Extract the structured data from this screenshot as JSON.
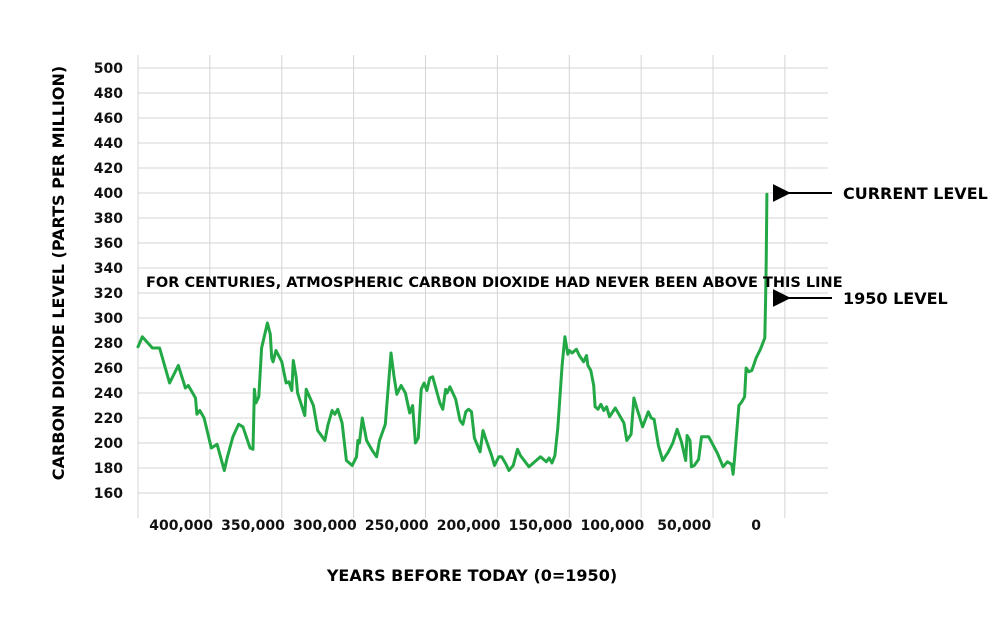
{
  "chart_data": {
    "type": "line",
    "title": "",
    "xlabel": "YEARS BEFORE TODAY (0=1950)",
    "ylabel": "CARBON DIOXIDE LEVEL (PARTS PER MILLION)",
    "ylim": [
      150,
      510
    ],
    "xlim": [
      430000,
      -50000
    ],
    "grid": true,
    "y_ticks": [
      160,
      180,
      200,
      220,
      240,
      260,
      280,
      300,
      320,
      340,
      360,
      380,
      400,
      420,
      440,
      460,
      480,
      500
    ],
    "x_ticks": [
      {
        "value": 400000,
        "label": "400,000"
      },
      {
        "value": 350000,
        "label": "350,000"
      },
      {
        "value": 300000,
        "label": "300,000"
      },
      {
        "value": 250000,
        "label": "250,000"
      },
      {
        "value": 200000,
        "label": "200,000"
      },
      {
        "value": 150000,
        "label": "150,000"
      },
      {
        "value": 100000,
        "label": "100,000"
      },
      {
        "value": 50000,
        "label": "50,000"
      },
      {
        "value": 0,
        "label": "0"
      }
    ],
    "x_grid": [
      430000,
      380000,
      330000,
      280000,
      230000,
      180000,
      130000,
      80000,
      30000,
      -20000
    ],
    "series": [
      {
        "color": "#22a845",
        "points": [
          [
            430000,
            277
          ],
          [
            427000,
            285
          ],
          [
            420000,
            276
          ],
          [
            415000,
            276
          ],
          [
            408000,
            248
          ],
          [
            402000,
            262
          ],
          [
            397000,
            244
          ],
          [
            395000,
            246
          ],
          [
            390000,
            236
          ],
          [
            389000,
            223
          ],
          [
            387000,
            226
          ],
          [
            384000,
            220
          ],
          [
            379000,
            196
          ],
          [
            375000,
            199
          ],
          [
            370000,
            178
          ],
          [
            368000,
            188
          ],
          [
            364000,
            205
          ],
          [
            360000,
            215
          ],
          [
            357000,
            213
          ],
          [
            352000,
            196
          ],
          [
            350000,
            195
          ],
          [
            349000,
            243
          ],
          [
            348000,
            232
          ],
          [
            346000,
            237
          ],
          [
            344000,
            276
          ],
          [
            340000,
            296
          ],
          [
            338000,
            287
          ],
          [
            337000,
            268
          ],
          [
            336000,
            265
          ],
          [
            334000,
            274
          ],
          [
            330000,
            265
          ],
          [
            327000,
            248
          ],
          [
            325000,
            249
          ],
          [
            323000,
            242
          ],
          [
            322000,
            266
          ],
          [
            320000,
            253
          ],
          [
            319000,
            240
          ],
          [
            314000,
            222
          ],
          [
            313000,
            243
          ],
          [
            308000,
            230
          ],
          [
            305000,
            210
          ],
          [
            300000,
            202
          ],
          [
            298000,
            214
          ],
          [
            295000,
            226
          ],
          [
            293000,
            223
          ],
          [
            291000,
            227
          ],
          [
            288000,
            216
          ],
          [
            285000,
            186
          ],
          [
            281000,
            182
          ],
          [
            278000,
            189
          ],
          [
            277000,
            202
          ],
          [
            276000,
            200
          ],
          [
            274000,
            220
          ],
          [
            271000,
            202
          ],
          [
            267000,
            194
          ],
          [
            264000,
            189
          ],
          [
            262000,
            202
          ],
          [
            258000,
            215
          ],
          [
            254000,
            272
          ],
          [
            252000,
            254
          ],
          [
            250000,
            239
          ],
          [
            247000,
            246
          ],
          [
            244000,
            240
          ],
          [
            241000,
            224
          ],
          [
            239000,
            230
          ],
          [
            237000,
            200
          ],
          [
            235000,
            204
          ],
          [
            233000,
            243
          ],
          [
            231000,
            248
          ],
          [
            229000,
            242
          ],
          [
            227000,
            252
          ],
          [
            225000,
            253
          ],
          [
            220000,
            232
          ],
          [
            218000,
            227
          ],
          [
            216000,
            243
          ],
          [
            215000,
            240
          ],
          [
            213000,
            245
          ],
          [
            209000,
            235
          ],
          [
            206000,
            218
          ],
          [
            204000,
            215
          ],
          [
            202000,
            225
          ],
          [
            200000,
            227
          ],
          [
            198000,
            225
          ],
          [
            196000,
            204
          ],
          [
            192000,
            193
          ],
          [
            190000,
            210
          ],
          [
            188000,
            203
          ],
          [
            184000,
            190
          ],
          [
            182000,
            182
          ],
          [
            179000,
            189
          ],
          [
            177000,
            189
          ],
          [
            174000,
            183
          ],
          [
            172000,
            178
          ],
          [
            169000,
            182
          ],
          [
            166000,
            195
          ],
          [
            164000,
            190
          ],
          [
            158000,
            181
          ],
          [
            155000,
            184
          ],
          [
            150000,
            189
          ],
          [
            146000,
            185
          ],
          [
            144000,
            188
          ],
          [
            142000,
            184
          ],
          [
            140000,
            190
          ],
          [
            138000,
            212
          ],
          [
            135000,
            262
          ],
          [
            133000,
            285
          ],
          [
            131000,
            271
          ],
          [
            130000,
            274
          ],
          [
            128000,
            272
          ],
          [
            125000,
            275
          ],
          [
            123000,
            270
          ],
          [
            120000,
            265
          ],
          [
            118000,
            270
          ],
          [
            117000,
            262
          ],
          [
            115000,
            258
          ],
          [
            113000,
            246
          ],
          [
            112000,
            229
          ],
          [
            110000,
            227
          ],
          [
            108000,
            231
          ],
          [
            106000,
            226
          ],
          [
            104000,
            229
          ],
          [
            102000,
            221
          ],
          [
            98000,
            228
          ],
          [
            95000,
            222
          ],
          [
            92000,
            216
          ],
          [
            90000,
            202
          ],
          [
            87000,
            207
          ],
          [
            85000,
            236
          ],
          [
            83000,
            228
          ],
          [
            79000,
            213
          ],
          [
            75000,
            225
          ],
          [
            73000,
            220
          ],
          [
            71000,
            219
          ],
          [
            68000,
            198
          ],
          [
            65000,
            186
          ],
          [
            61000,
            193
          ],
          [
            58000,
            200
          ],
          [
            55000,
            211
          ],
          [
            52000,
            201
          ],
          [
            49000,
            186
          ],
          [
            48000,
            206
          ],
          [
            46000,
            202
          ],
          [
            45000,
            181
          ],
          [
            43000,
            182
          ],
          [
            40000,
            187
          ],
          [
            38000,
            205
          ],
          [
            33000,
            205
          ],
          [
            27000,
            192
          ],
          [
            23000,
            181
          ],
          [
            20000,
            185
          ],
          [
            17000,
            183
          ],
          [
            16000,
            175
          ],
          [
            15000,
            188
          ],
          [
            12000,
            230
          ],
          [
            10000,
            233
          ],
          [
            8000,
            237
          ],
          [
            7000,
            260
          ],
          [
            5000,
            257
          ],
          [
            3000,
            258
          ],
          [
            1500,
            263
          ],
          [
            0,
            268
          ],
          [
            -3000,
            275
          ],
          [
            -6000,
            284
          ],
          [
            -6500,
            310
          ],
          [
            -7000,
            345
          ],
          [
            -7300,
            375
          ],
          [
            -7500,
            399
          ]
        ]
      }
    ],
    "threshold": {
      "value": 300,
      "label": "FOR CENTURIES, ATMOSPHERIC CARBON DIOXIDE HAD NEVER BEEN ABOVE THIS LINE"
    },
    "annotations": [
      {
        "label": "CURRENT LEVEL",
        "y": 400
      },
      {
        "label": "1950 LEVEL",
        "y": 316
      }
    ]
  }
}
